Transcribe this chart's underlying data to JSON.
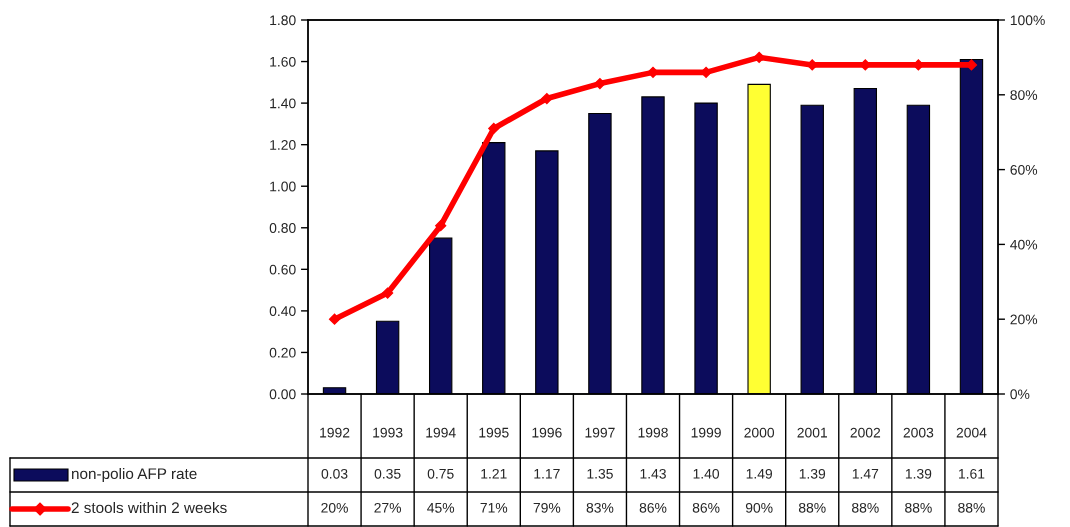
{
  "chart_data": {
    "type": "bar",
    "categories": [
      "1992",
      "1993",
      "1994",
      "1995",
      "1996",
      "1997",
      "1998",
      "1999",
      "2000",
      "2001",
      "2002",
      "2003",
      "2004"
    ],
    "series": [
      {
        "name": "non-polio AFP rate",
        "colors": [
          "#0c0c5c",
          "#0c0c5c",
          "#0c0c5c",
          "#0c0c5c",
          "#0c0c5c",
          "#0c0c5c",
          "#0c0c5c",
          "#0c0c5c",
          "#ffff33",
          "#0c0c5c",
          "#0c0c5c",
          "#0c0c5c",
          "#0c0c5c"
        ],
        "color": "#0c0c5c",
        "values": [
          0.03,
          0.35,
          0.75,
          1.21,
          1.17,
          1.35,
          1.43,
          1.4,
          1.49,
          1.39,
          1.47,
          1.39,
          1.61
        ],
        "value_labels": [
          "0.03",
          "0.35",
          "0.75",
          "1.21",
          "1.17",
          "1.35",
          "1.43",
          "1.40",
          "1.49",
          "1.39",
          "1.47",
          "1.39",
          "1.61"
        ]
      },
      {
        "name": "2 stools within 2 weeks",
        "type": "line",
        "axis": "y2",
        "color": "#ff0000",
        "marker": "diamond",
        "line_style": "solid",
        "values": [
          20,
          27,
          45,
          71,
          79,
          83,
          86,
          86,
          90,
          88,
          88,
          88,
          88
        ],
        "value_labels": [
          "20%",
          "27%",
          "45%",
          "71%",
          "79%",
          "83%",
          "86%",
          "86%",
          "90%",
          "88%",
          "88%",
          "88%",
          "88%"
        ]
      }
    ],
    "ylim": [
      0,
      1.8
    ],
    "yticks": [
      {
        "value": 0,
        "label": "0.00"
      },
      {
        "value": 0.2,
        "label": "0.20"
      },
      {
        "value": 0.4,
        "label": "0.40"
      },
      {
        "value": 0.6,
        "label": "0.60"
      },
      {
        "value": 0.8,
        "label": "0.80"
      },
      {
        "value": 1.0,
        "label": "1.00"
      },
      {
        "value": 1.2,
        "label": "1.20"
      },
      {
        "value": 1.4,
        "label": "1.40"
      },
      {
        "value": 1.6,
        "label": "1.60"
      },
      {
        "value": 1.8,
        "label": "1.80"
      }
    ],
    "y2lim": [
      0,
      100
    ],
    "y2ticks": [
      {
        "value": 0,
        "label": "0%"
      },
      {
        "value": 20,
        "label": "20%"
      },
      {
        "value": 40,
        "label": "40%"
      },
      {
        "value": 60,
        "label": "60%"
      },
      {
        "value": 80,
        "label": "80%"
      },
      {
        "value": 100,
        "label": "100%"
      }
    ],
    "grid": false,
    "legend": "bottom left"
  }
}
